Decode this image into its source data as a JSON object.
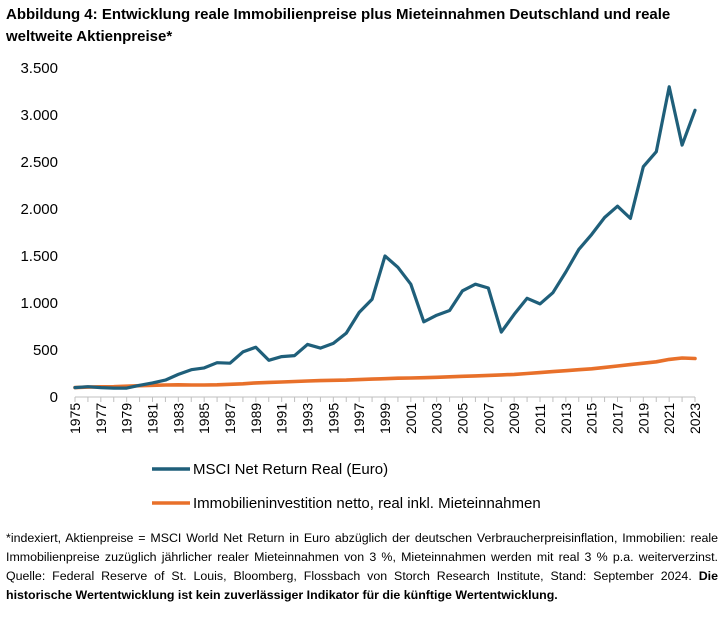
{
  "title": "Abbildung 4: Entwicklung reale Immobilienpreise plus Mieteinnahmen Deutschland und reale weltweite Aktienpreise*",
  "chart_data": {
    "type": "line",
    "title": "Abbildung 4: Entwicklung reale Immobilienpreise plus Mieteinnahmen Deutschland und reale weltweite Aktienpreise*",
    "xlabel": "",
    "ylabel": "",
    "ylim": [
      0,
      3500
    ],
    "yticks": [
      0,
      500,
      1000,
      1500,
      2000,
      2500,
      3000,
      3500
    ],
    "ytick_labels": [
      "0",
      "500",
      "1.000",
      "1.500",
      "2.000",
      "2.500",
      "3.000",
      "3.500"
    ],
    "xtick_labels": [
      "1975",
      "1977",
      "1979",
      "1981",
      "1983",
      "1985",
      "1987",
      "1989",
      "1991",
      "1993",
      "1995",
      "1997",
      "1999",
      "2001",
      "2003",
      "2005",
      "2007",
      "2009",
      "2011",
      "2013",
      "2015",
      "2017",
      "2019",
      "2021",
      "2023"
    ],
    "x": [
      1975,
      1976,
      1977,
      1978,
      1979,
      1980,
      1981,
      1982,
      1983,
      1984,
      1985,
      1986,
      1987,
      1988,
      1989,
      1990,
      1991,
      1992,
      1993,
      1994,
      1995,
      1996,
      1997,
      1998,
      1999,
      2000,
      2001,
      2002,
      2003,
      2004,
      2005,
      2006,
      2007,
      2008,
      2009,
      2010,
      2011,
      2012,
      2013,
      2014,
      2015,
      2016,
      2017,
      2018,
      2019,
      2020,
      2021,
      2022,
      2023
    ],
    "series": [
      {
        "name": "MSCI Net Return Real (Euro)",
        "color": "#1f5f7a",
        "values": [
          100,
          110,
          100,
          95,
          95,
          125,
          150,
          180,
          240,
          290,
          310,
          365,
          360,
          480,
          530,
          390,
          430,
          440,
          560,
          520,
          570,
          680,
          900,
          1040,
          1500,
          1380,
          1200,
          800,
          870,
          920,
          1130,
          1200,
          1160,
          690,
          880,
          1050,
          990,
          1110,
          1330,
          1570,
          1730,
          1910,
          2030,
          1900,
          2450,
          2610,
          3300,
          2680,
          3050
        ]
      },
      {
        "name": "Immobilieninvestition netto, real inkl. Mieteinnahmen",
        "color": "#e8702a",
        "values": [
          100,
          105,
          108,
          110,
          115,
          120,
          125,
          128,
          130,
          128,
          128,
          130,
          135,
          140,
          150,
          155,
          160,
          165,
          170,
          175,
          178,
          180,
          185,
          190,
          195,
          200,
          202,
          205,
          210,
          215,
          220,
          225,
          230,
          235,
          240,
          250,
          260,
          270,
          280,
          290,
          300,
          315,
          330,
          345,
          360,
          375,
          400,
          415,
          410
        ]
      }
    ],
    "legend_position": "bottom",
    "grid": false
  },
  "footnote": {
    "text": "*indexiert, Aktienpreise = MSCI World Net Return in Euro abzüglich der deutschen Verbraucherpreisinflation, Immobilien: reale Immobilienpreise zuzüglich jährlicher realer Mieteinnahmen von 3 %, Mieteinnahmen werden mit real 3 % p.a. weiterverzinst. Quelle: Federal Reserve of St. Louis, Bloomberg, Flossbach von Storch Research Institute, Stand: September 2024.",
    "bold": "Die historische Wertentwicklung ist kein zuverlässiger Indikator für die künftige Wertentwicklung."
  }
}
